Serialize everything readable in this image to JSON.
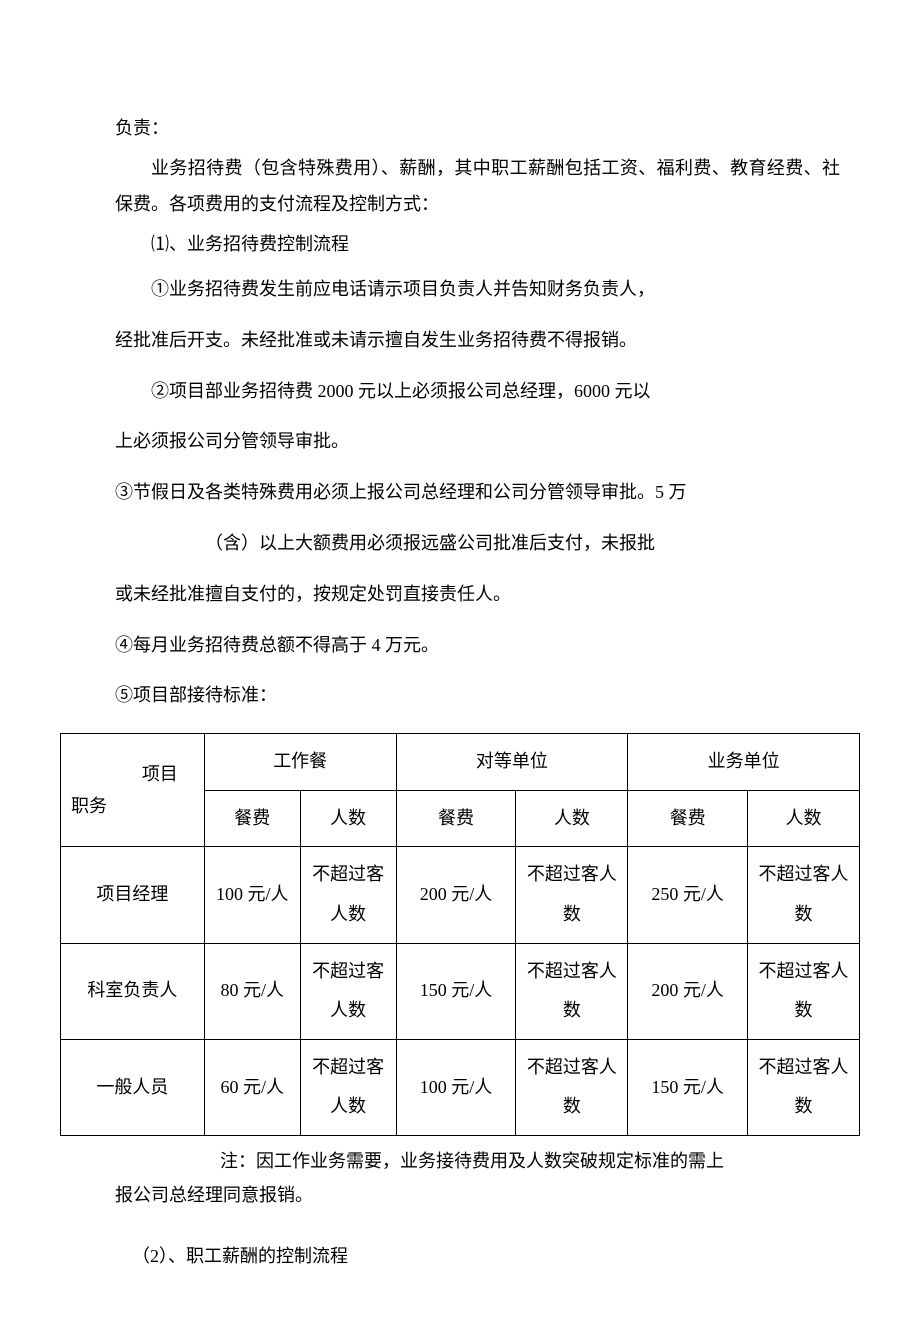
{
  "paragraphs": {
    "p1": "负责：",
    "p2": "业务招待费（包含特殊费用）、薪酬，其中职工薪酬包括工资、福利费、教育经费、社保费。各项费用的支付流程及控制方式：",
    "p3": "⑴、业务招待费控制流程",
    "p4": "①业务招待费发生前应电话请示项目负责人并告知财务负责人，",
    "p5": "经批准后开支。未经批准或未请示擅自发生业务招待费不得报销。",
    "p6": "②项目部业务招待费 2000 元以上必须报公司总经理，6000 元以",
    "p7": "上必须报公司分管领导审批。",
    "p8": "③节假日及各类特殊费用必须上报公司总经理和公司分管领导审批。5 万",
    "p9": "（含）以上大额费用必须报远盛公司批准后支付，未报批",
    "p10": "或未经批准擅自支付的，按规定处罚直接责任人。",
    "p11": "④每月业务招待费总额不得高于 4 万元。",
    "p12": "⑤项目部接待标准："
  },
  "table": {
    "diag_top": "项目",
    "diag_bot": "职务",
    "headers": {
      "group1": "工作餐",
      "group2": "对等单位",
      "group3": "业务单位",
      "sub1": "餐费",
      "sub2": "人数"
    },
    "rows": [
      {
        "role": "项目经理",
        "c1": "100 元/人",
        "n1": "不超过客人数",
        "c2": "200 元/人",
        "n2": "不超过客人数",
        "c3": "250 元/人",
        "n3": "不超过客人数"
      },
      {
        "role": "科室负责人",
        "c1": "80 元/人",
        "n1": "不超过客人数",
        "c2": "150 元/人",
        "n2": "不超过客人数",
        "c3": "200 元/人",
        "n3": "不超过客人数"
      },
      {
        "role": "一般人员",
        "c1": "60 元/人",
        "n1": "不超过客人数",
        "c2": "100 元/人",
        "n2": "不超过客人数",
        "c3": "150 元/人",
        "n3": "不超过客人数"
      }
    ]
  },
  "note_l1": "注：因工作业务需要，业务接待费用及人数突破规定标准的需上",
  "note_l2": "报公司总经理同意报销。",
  "section2": "（2）、职工薪酬的控制流程"
}
